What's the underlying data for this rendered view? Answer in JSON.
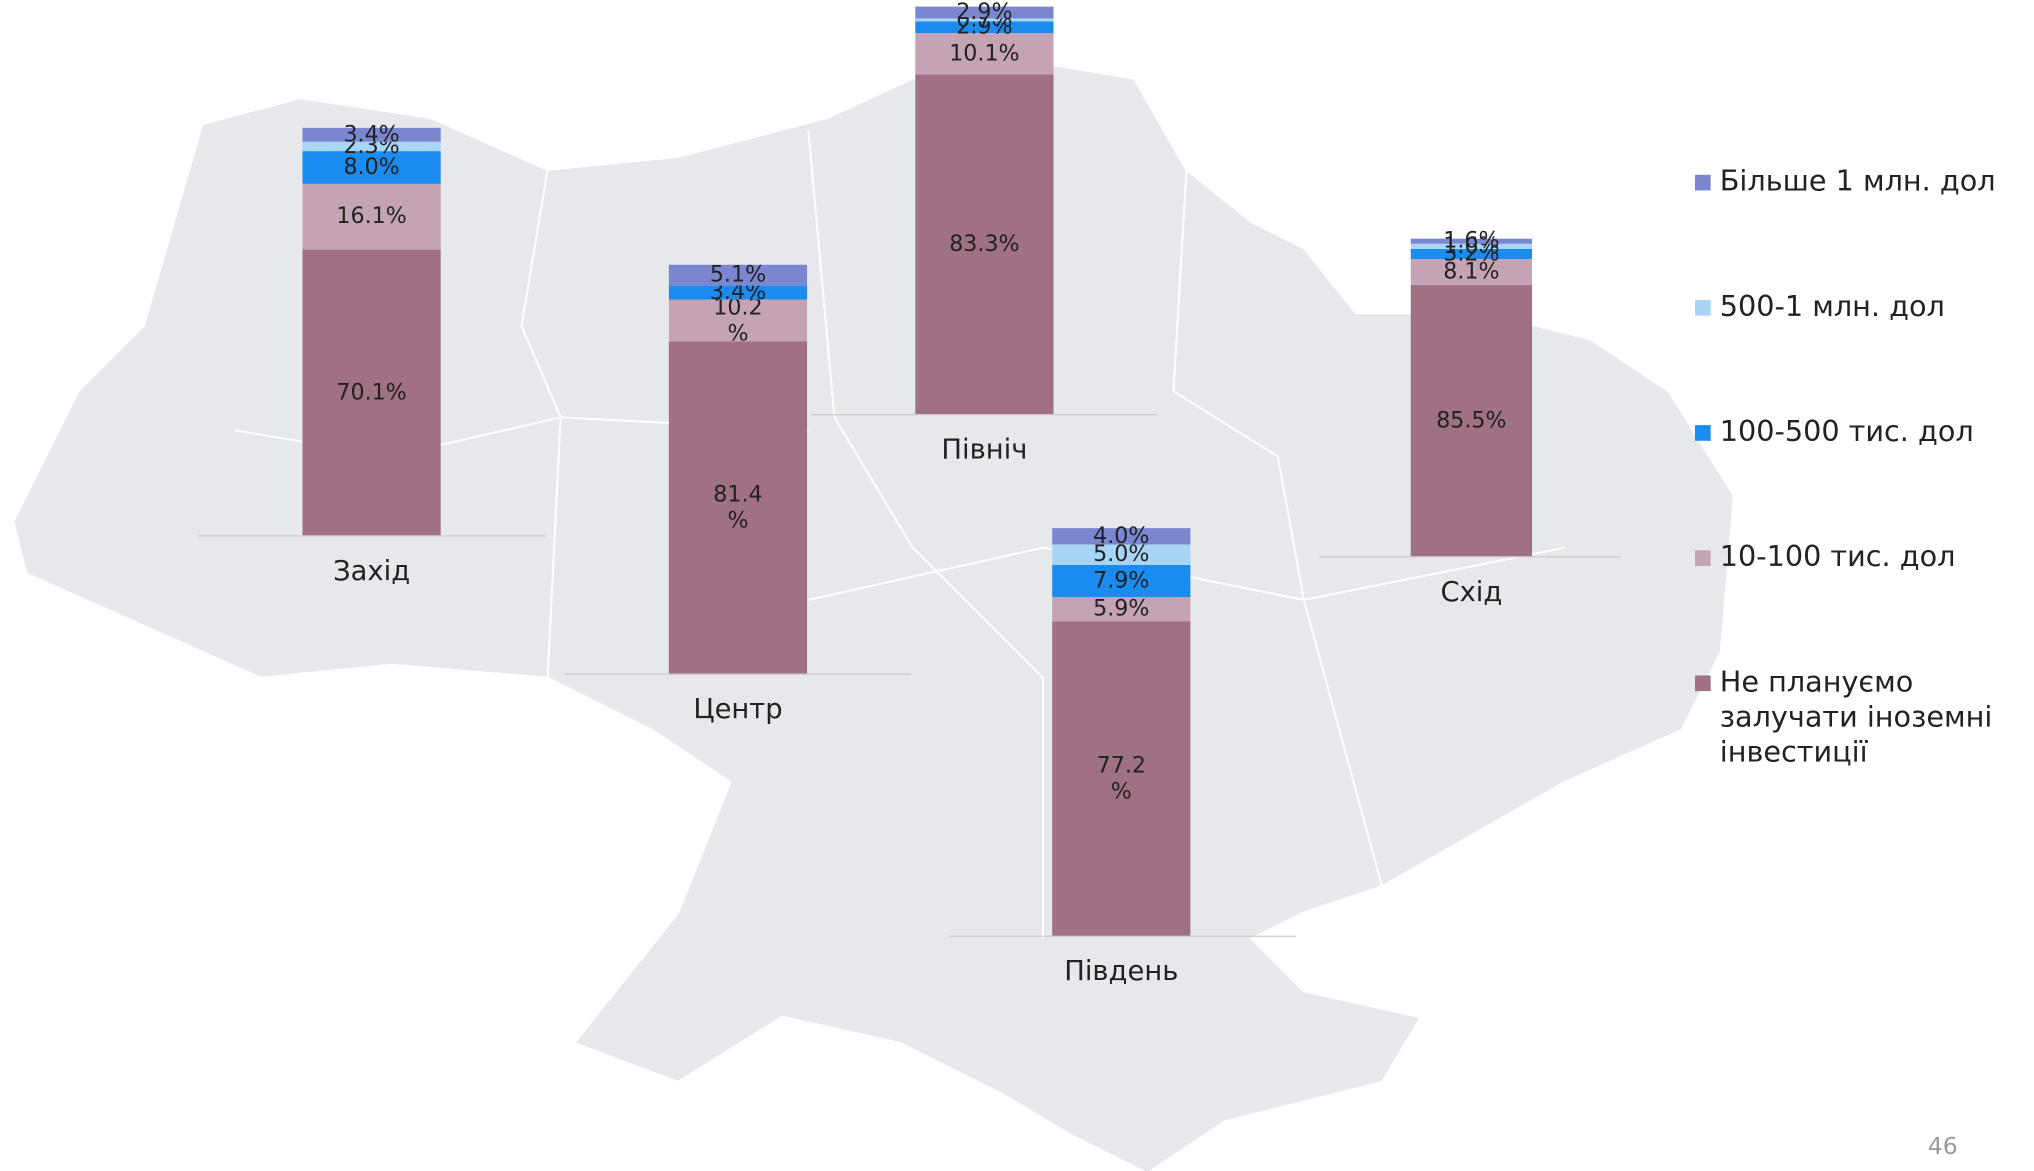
{
  "chart_data": {
    "type": "stacked_bar",
    "categories": [
      "Захід",
      "Центр",
      "Північ",
      "Південь",
      "Схід"
    ],
    "series": [
      {
        "name": "Не плануємо\nзалучати іноземні\nінвестиції",
        "color": "#a07084",
        "values": [
          70.1,
          81.4,
          83.3,
          77.2,
          85.5
        ],
        "value_labels": [
          "70.1%",
          "81.4\n%",
          "83.3%",
          "77.2\n%",
          "85.5%"
        ]
      },
      {
        "name": "10-100 тис. дол",
        "color": "#c4a4b4",
        "values": [
          16.1,
          10.2,
          10.1,
          5.9,
          8.1
        ],
        "value_labels": [
          "16.1%",
          "10.2\n%",
          "10.1%",
          "5.9%",
          "8.1%"
        ]
      },
      {
        "name": "100-500 тис. дол",
        "color": "#1a8cf0",
        "values": [
          8.0,
          3.4,
          2.9,
          7.9,
          3.2
        ],
        "value_labels": [
          "8.0%",
          "3.4%",
          "2.9%",
          "7.9%",
          "3.2%"
        ]
      },
      {
        "name": "500-1 млн. дол",
        "color": "#a8d4f5",
        "values": [
          2.3,
          null,
          0.7,
          5.0,
          1.6
        ],
        "value_labels": [
          "2.3%",
          null,
          "0.7%",
          "5.0%",
          "1.6%"
        ]
      },
      {
        "name": "Більше 1 млн. дол",
        "color": "#7b86d0",
        "values": [
          3.4,
          5.1,
          2.9,
          4.0,
          1.6
        ],
        "value_labels": [
          "3.4%",
          "5.1%",
          "2.9%",
          "4.0%",
          "1.6%"
        ]
      }
    ],
    "page_number": "46"
  }
}
